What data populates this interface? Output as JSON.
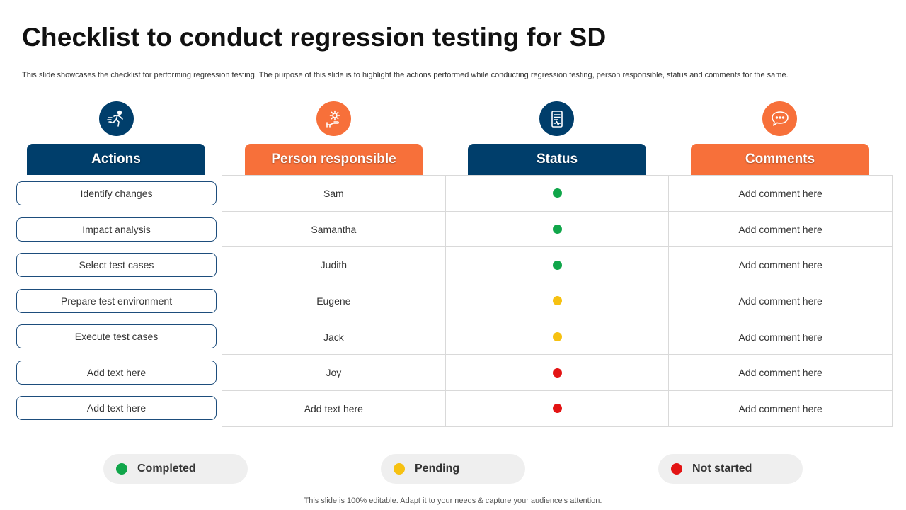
{
  "title": "Checklist to conduct regression testing for SD",
  "subtitle": "This slide showcases the checklist for performing regression testing. The purpose of this slide is to highlight the actions performed while conducting regression testing, person responsible, status and comments for the same.",
  "headers": {
    "actions": "Actions",
    "person": "Person responsible",
    "status": "Status",
    "comments": "Comments"
  },
  "colors": {
    "navy": "#003e6b",
    "orange": "#f7703a",
    "completed": "#10a64a",
    "pending": "#f6c111",
    "not_started": "#e31414"
  },
  "icons": {
    "actions": "running-person-icon",
    "person": "gear-hand-icon",
    "status": "report-document-icon",
    "comments": "chat-bubble-icon"
  },
  "rows": [
    {
      "action": "Identify changes",
      "person": "Sam",
      "status": "completed",
      "comment": "Add comment here"
    },
    {
      "action": "Impact analysis",
      "person": "Samantha",
      "status": "completed",
      "comment": "Add comment here"
    },
    {
      "action": "Select test cases",
      "person": "Judith",
      "status": "completed",
      "comment": "Add comment here"
    },
    {
      "action": "Prepare test environment",
      "person": "Eugene",
      "status": "pending",
      "comment": "Add comment here"
    },
    {
      "action": "Execute test cases",
      "person": "Jack",
      "status": "pending",
      "comment": "Add comment here"
    },
    {
      "action": "Add text here",
      "person": "Joy",
      "status": "not_started",
      "comment": "Add comment here"
    },
    {
      "action": "Add text here",
      "person": "Add text here",
      "status": "not_started",
      "comment": "Add comment here"
    }
  ],
  "legend": {
    "completed": "Completed",
    "pending": "Pending",
    "not_started": "Not started"
  },
  "footer": "This slide is 100% editable. Adapt it to your needs & capture your audience's attention."
}
